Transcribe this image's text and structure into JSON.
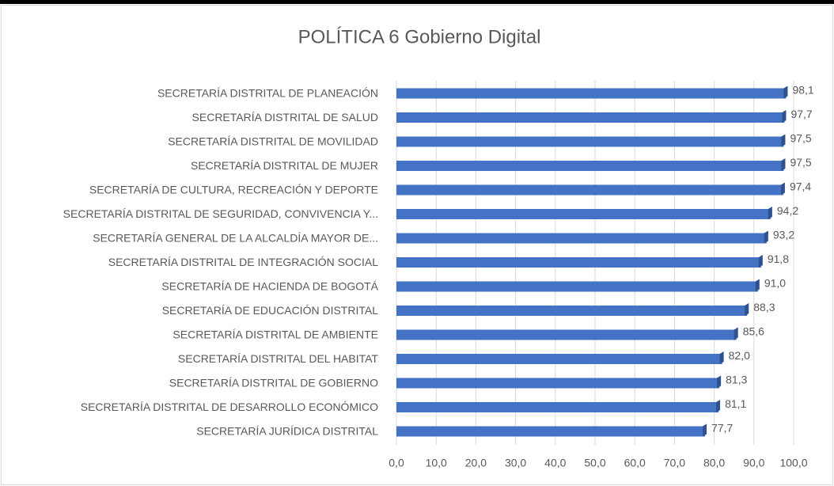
{
  "chart_data": {
    "type": "bar",
    "orientation": "horizontal",
    "title": "POLÍTICA 6 Gobierno Digital",
    "categories": [
      "SECRETARÍA DISTRITAL DE PLANEACIÓN",
      "SECRETARÍA DISTRITAL DE SALUD",
      "SECRETARÍA DISTRITAL DE MOVILIDAD",
      "SECRETARÍA DISTRITAL DE MUJER",
      "SECRETARÍA DE CULTURA, RECREACIÓN Y DEPORTE",
      "SECRETARÍA DISTRITAL DE SEGURIDAD, CONVIVENCIA Y...",
      "SECRETARÍA GENERAL DE LA ALCALDÍA MAYOR DE...",
      "SECRETARÍA DISTRITAL DE INTEGRACIÓN SOCIAL",
      "SECRETARÍA DE HACIENDA DE BOGOTÁ",
      "SECRETARÍA DE EDUCACIÓN DISTRITAL",
      "SECRETARÍA DISTRITAL DE AMBIENTE",
      "SECRETARÍA DISTRITAL DEL HABITAT",
      "SECRETARÍA DISTRITAL DE GOBIERNO",
      "SECRETARÍA DISTRITAL DE DESARROLLO ECONÓMICO",
      "SECRETARÍA JURÍDICA DISTRITAL"
    ],
    "values": [
      98.1,
      97.7,
      97.5,
      97.5,
      97.4,
      94.2,
      93.2,
      91.8,
      91.0,
      88.3,
      85.6,
      82.0,
      81.3,
      81.1,
      77.7
    ],
    "value_labels": [
      "98,1",
      "97,7",
      "97,5",
      "97,5",
      "97,4",
      "94,2",
      "93,2",
      "91,8",
      "91,0",
      "88,3",
      "85,6",
      "82,0",
      "81,3",
      "81,1",
      "77,7"
    ],
    "color": "#4472c4",
    "xlim": [
      0,
      100
    ],
    "xticks": [
      {
        "value": 0,
        "label": "0,0"
      },
      {
        "value": 10,
        "label": "10,0"
      },
      {
        "value": 20,
        "label": "20,0"
      },
      {
        "value": 30,
        "label": "30,0"
      },
      {
        "value": 40,
        "label": "40,0"
      },
      {
        "value": 50,
        "label": "50,0"
      },
      {
        "value": 60,
        "label": "60,0"
      },
      {
        "value": 70,
        "label": "70,0"
      },
      {
        "value": 80,
        "label": "80,0"
      },
      {
        "value": 90,
        "label": "90,0"
      },
      {
        "value": 100,
        "label": "100,0"
      }
    ],
    "grid": true
  }
}
